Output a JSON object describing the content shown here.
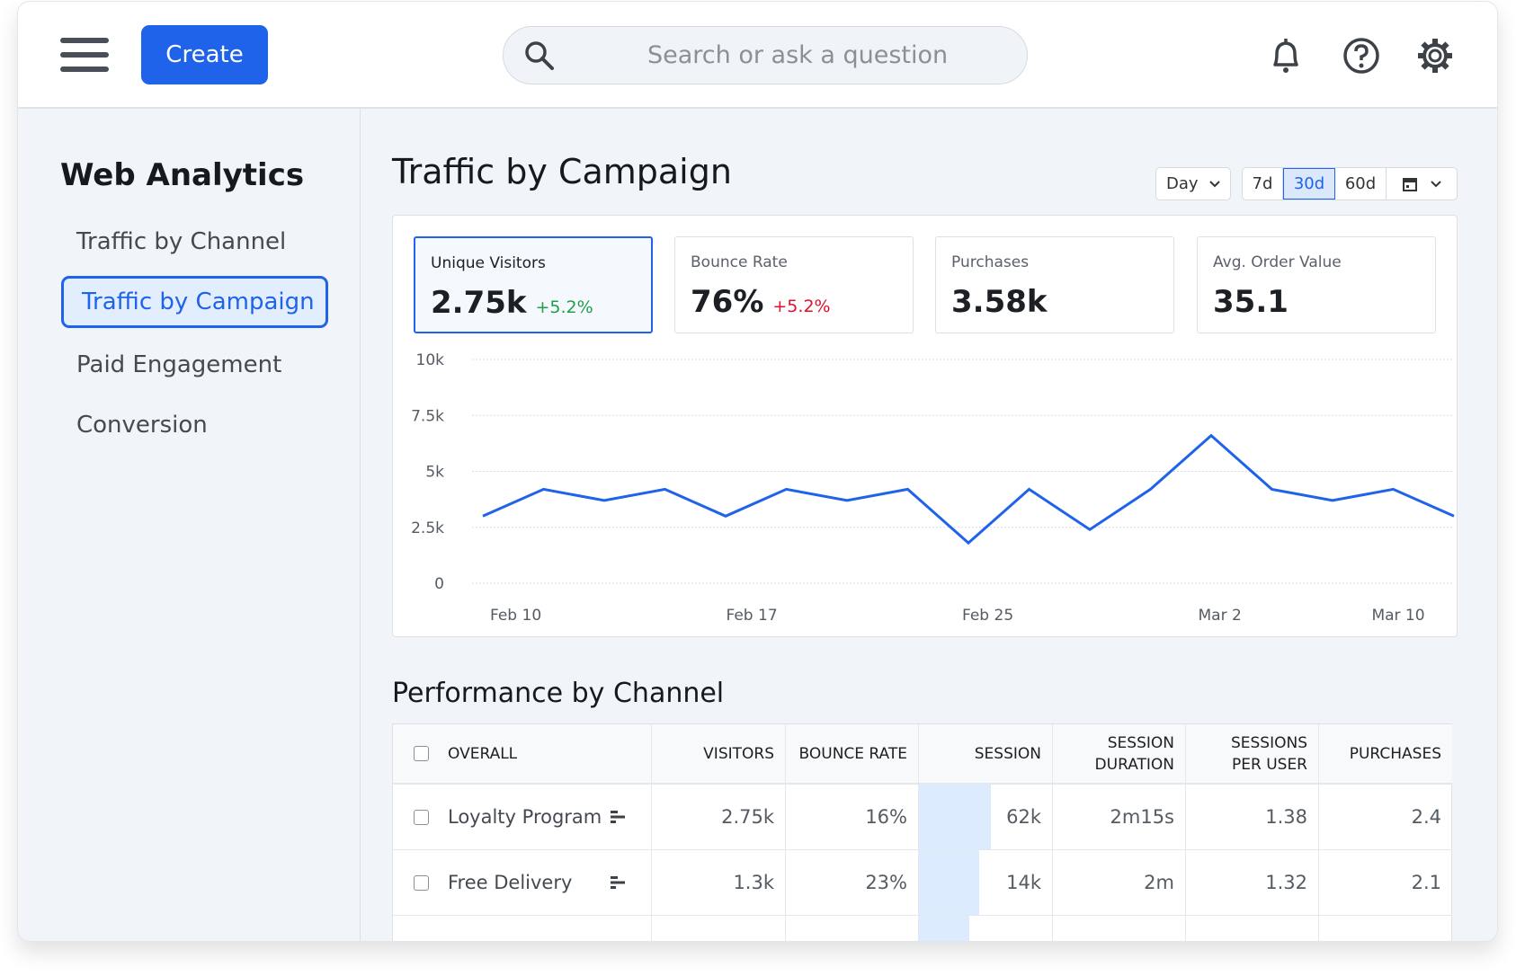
{
  "header": {
    "create_label": "Create",
    "search_placeholder": "Search or ask a question",
    "icons": [
      "menu-icon",
      "search-icon",
      "bell-icon",
      "help-icon",
      "gear-icon"
    ]
  },
  "sidebar": {
    "title": "Web Analytics",
    "items": [
      {
        "label": "Traffic by Channel",
        "active": false
      },
      {
        "label": "Traffic by Campaign",
        "active": true
      },
      {
        "label": "Paid Engagement",
        "active": false
      },
      {
        "label": "Conversion",
        "active": false
      }
    ]
  },
  "main": {
    "title": "Traffic by Campaign",
    "granularity": "Day",
    "ranges": [
      "7d",
      "30d",
      "60d"
    ],
    "selected_range": "30d",
    "kpis": [
      {
        "label": "Unique Visitors",
        "value": "2.75k",
        "change": "+5.2%",
        "change_color": "#1e9e4a"
      },
      {
        "label": "Bounce Rate",
        "value": "76%",
        "change": "+5.2%",
        "change_color": "#e0112b"
      },
      {
        "label": "Purchases",
        "value": "3.58k",
        "change": ""
      },
      {
        "label": "Avg. Order Value",
        "value": "35.1",
        "change": ""
      }
    ]
  },
  "chart_data": {
    "type": "line",
    "y_ticks": [
      "0",
      "2.5k",
      "5k",
      "7.5k",
      "10k"
    ],
    "ylim": [
      0,
      10000
    ],
    "x_tick_labels": [
      "Feb 10",
      "Feb 17",
      "Feb 25",
      "Mar 2",
      "Mar 10"
    ],
    "values": [
      3000,
      4200,
      3700,
      4200,
      3000,
      4200,
      3700,
      4200,
      1800,
      4200,
      2400,
      4200,
      6600,
      4200,
      3700,
      4200,
      3000
    ],
    "color": "#1f63ea",
    "grid": true
  },
  "table": {
    "title": "Performance by Channel",
    "headers": [
      "OVERALL",
      "VISITORS",
      "BOUNCE RATE",
      "SESSION",
      "SESSION DURATION",
      "SESSIONS PER USER",
      "PURCHASES"
    ],
    "rows": [
      {
        "name": "Loyalty Program",
        "visitors": "2.75k",
        "bounce": "16%",
        "session": "62k",
        "session_bar": 0.54,
        "duration": "2m15s",
        "per_user": "1.38",
        "purchases": "2.4"
      },
      {
        "name": "Free Delivery",
        "visitors": "1.3k",
        "bounce": "23%",
        "session": "14k",
        "session_bar": 0.45,
        "duration": "2m",
        "per_user": "1.32",
        "purchases": "2.1"
      }
    ],
    "partial_row_session_bar": 0.38
  }
}
